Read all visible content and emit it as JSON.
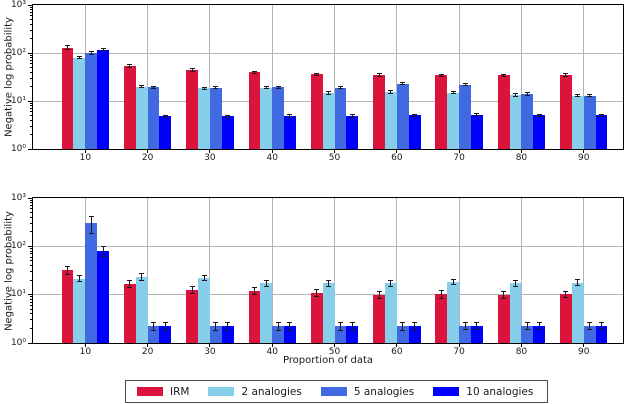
{
  "figure": {
    "background": "#ffffff",
    "axis_color": "#000000",
    "grid_color": "#b4b4b4",
    "errorbar_color": "#1a1a1a",
    "x_axis_label": "Proportion of data",
    "y_axis_label": "Negative log probability",
    "legend": {
      "position": "bottom-center-below-plots",
      "entries": [
        {
          "label": "IRM",
          "color": "#DC143C"
        },
        {
          "label": "2 analogies",
          "color": "#87CEEB"
        },
        {
          "label": "5 analogies",
          "color": "#4169E1"
        },
        {
          "label": "10 analogies",
          "color": "#0000FF"
        }
      ]
    }
  },
  "chart_data": [
    {
      "type": "bar",
      "title": "",
      "xlabel": "",
      "ylabel": "Negative log probability",
      "yscale": "log",
      "ylim": [
        1,
        1000
      ],
      "xlim": [
        1.6,
        96.3
      ],
      "grid": true,
      "y_tick_values": [
        1,
        10,
        100,
        1000
      ],
      "y_tick_labels": [
        "10⁰",
        "10¹",
        "10²",
        "10³"
      ],
      "categories": [
        10,
        20,
        30,
        40,
        50,
        60,
        70,
        80,
        90
      ],
      "series": [
        {
          "name": "IRM",
          "color": "#DC143C",
          "values": [
            130,
            54,
            44,
            40,
            36,
            35,
            34,
            34,
            35
          ],
          "errors": [
            12,
            3,
            2.5,
            2,
            2,
            2,
            2,
            2,
            2
          ]
        },
        {
          "name": "2 analogies",
          "color": "#87CEEB",
          "values": [
            80,
            20,
            18.5,
            19,
            14.5,
            15.5,
            15,
            13.5,
            13
          ],
          "errors": [
            4,
            1.2,
            1,
            1,
            1,
            1,
            1,
            0.8,
            0.8
          ]
        },
        {
          "name": "5 analogies",
          "color": "#4169E1",
          "values": [
            100,
            19.5,
            19,
            19.5,
            19,
            23,
            22,
            14,
            13
          ],
          "errors": [
            5,
            1,
            1,
            1,
            1,
            1.3,
            1.2,
            0.8,
            0.8
          ]
        },
        {
          "name": "10 analogies",
          "color": "#0000FF",
          "values": [
            118,
            4.8,
            4.8,
            4.9,
            4.9,
            5.0,
            5.2,
            5.0,
            5.0
          ],
          "errors": [
            6,
            0.3,
            0.3,
            0.3,
            0.3,
            0.3,
            0.3,
            0.3,
            0.3
          ]
        }
      ]
    },
    {
      "type": "bar",
      "title": "",
      "xlabel": "Proportion of data",
      "ylabel": "Negative log probability",
      "yscale": "log",
      "ylim": [
        1,
        1000
      ],
      "xlim": [
        1.6,
        96.3
      ],
      "grid": true,
      "y_tick_values": [
        1,
        10,
        100,
        1000
      ],
      "y_tick_labels": [
        "10⁰",
        "10¹",
        "10²",
        "10³"
      ],
      "categories": [
        10,
        20,
        30,
        40,
        50,
        60,
        70,
        80,
        90
      ],
      "series": [
        {
          "name": "IRM",
          "color": "#DC143C",
          "values": [
            32,
            17,
            12.5,
            12,
            11,
            10,
            10.3,
            10,
            10.2
          ],
          "errors": [
            6,
            3,
            2,
            2,
            2,
            1.8,
            1.8,
            1.5,
            1.5
          ]
        },
        {
          "name": "2 analogies",
          "color": "#87CEEB",
          "values": [
            21.5,
            23.5,
            22,
            17.5,
            17.5,
            17.5,
            18.5,
            17.5,
            17.8
          ],
          "errors": [
            3,
            3.5,
            2.5,
            2.5,
            2.5,
            2.5,
            2.5,
            2.5,
            2.5
          ]
        },
        {
          "name": "5 analogies",
          "color": "#4169E1",
          "values": [
            300,
            2.2,
            2.2,
            2.2,
            2.2,
            2.2,
            2.3,
            2.3,
            2.3
          ],
          "errors": [
            120,
            0.4,
            0.4,
            0.4,
            0.4,
            0.4,
            0.4,
            0.4,
            0.4
          ]
        },
        {
          "name": "10 analogies",
          "color": "#0000FF",
          "values": [
            80,
            2.2,
            2.2,
            2.2,
            2.2,
            2.2,
            2.3,
            2.3,
            2.3
          ],
          "errors": [
            18,
            0.4,
            0.4,
            0.4,
            0.4,
            0.4,
            0.4,
            0.4,
            0.4
          ]
        }
      ]
    }
  ]
}
